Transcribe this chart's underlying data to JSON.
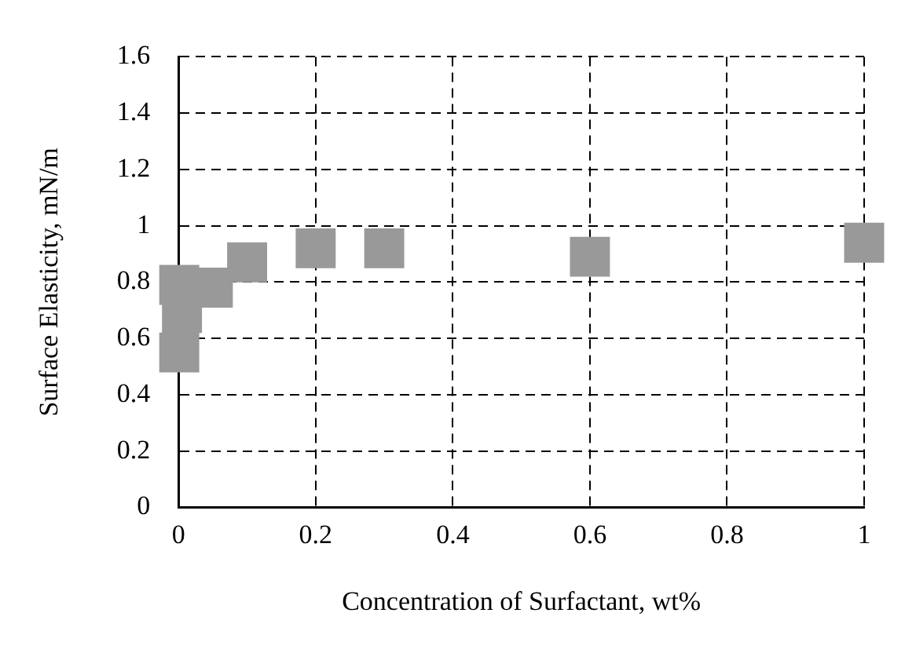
{
  "chart_data": {
    "type": "scatter",
    "xlabel": "Concentration of Surfactant, wt%",
    "ylabel": "Surface Elasticity, mN/m",
    "x": [
      0.001,
      0.001,
      0.005,
      0.05,
      0.1,
      0.2,
      0.3,
      0.6,
      1.0
    ],
    "series": [
      {
        "color": "#999999",
        "values": [
          0.55,
          0.79,
          0.69,
          0.78,
          0.87,
          0.92,
          0.92,
          0.89,
          0.94
        ]
      }
    ],
    "xlim": [
      0,
      1
    ],
    "xticks": [
      0,
      0.2,
      0.4,
      0.6,
      0.8,
      1
    ],
    "ylim": [
      0,
      1.6
    ],
    "yticks": [
      0,
      0.2,
      0.4,
      0.6,
      0.8,
      1,
      1.2,
      1.4,
      1.6
    ],
    "grid": true,
    "marker": "square",
    "legend": false
  }
}
